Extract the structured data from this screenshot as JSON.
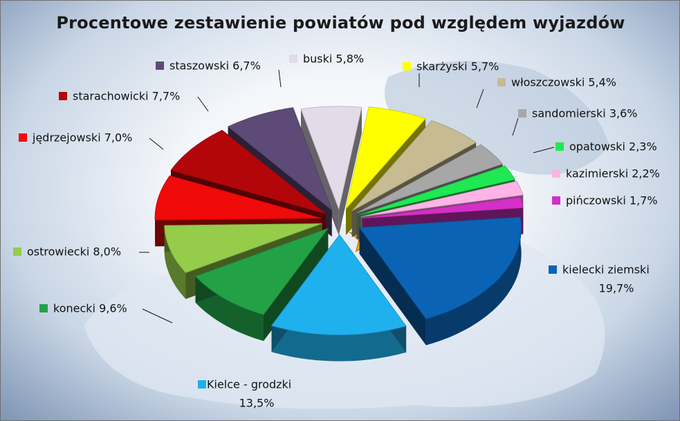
{
  "chart_data": {
    "type": "pie",
    "title": "Procentowe zestawienie powiatów pod względem wyjazdów",
    "legend": "labels-around",
    "slices": [
      {
        "name": "kielecki ziemski",
        "value": 19.7,
        "label": "19,7%",
        "color": "#0a63b4"
      },
      {
        "name": "Kielce - grodzki",
        "value": 13.5,
        "label": "13,5%",
        "color": "#1fb0ee"
      },
      {
        "name": "konecki",
        "value": 9.6,
        "label": "9,6%",
        "color": "#23a147"
      },
      {
        "name": "ostrowiecki",
        "value": 8.0,
        "label": "8,0%",
        "color": "#95cc4a"
      },
      {
        "name": "jędrzejowski",
        "value": 7.0,
        "label": "7,0%",
        "color": "#f00a0a"
      },
      {
        "name": "starachowicki",
        "value": 7.7,
        "label": "7,7%",
        "color": "#b3060b"
      },
      {
        "name": "staszowski",
        "value": 6.7,
        "label": "6,7%",
        "color": "#5e4a77"
      },
      {
        "name": "buski",
        "value": 5.8,
        "label": "5,8%",
        "color": "#e3dbe8"
      },
      {
        "name": "skarżyski",
        "value": 5.7,
        "label": "5,7%",
        "color": "#ffff00"
      },
      {
        "name": "włoszczowski",
        "value": 5.4,
        "label": "5,4%",
        "color": "#c6bb93"
      },
      {
        "name": "sandomierski",
        "value": 3.6,
        "label": "3,6%",
        "color": "#a7a7a7"
      },
      {
        "name": "opatowski",
        "value": 2.3,
        "label": "2,3%",
        "color": "#1ee852"
      },
      {
        "name": "kazimierski",
        "value": 2.2,
        "label": "2,2%",
        "color": "#ffb3e6"
      },
      {
        "name": "pińczowski",
        "value": 1.7,
        "label": "1,7%",
        "color": "#d42fc6"
      }
    ]
  }
}
